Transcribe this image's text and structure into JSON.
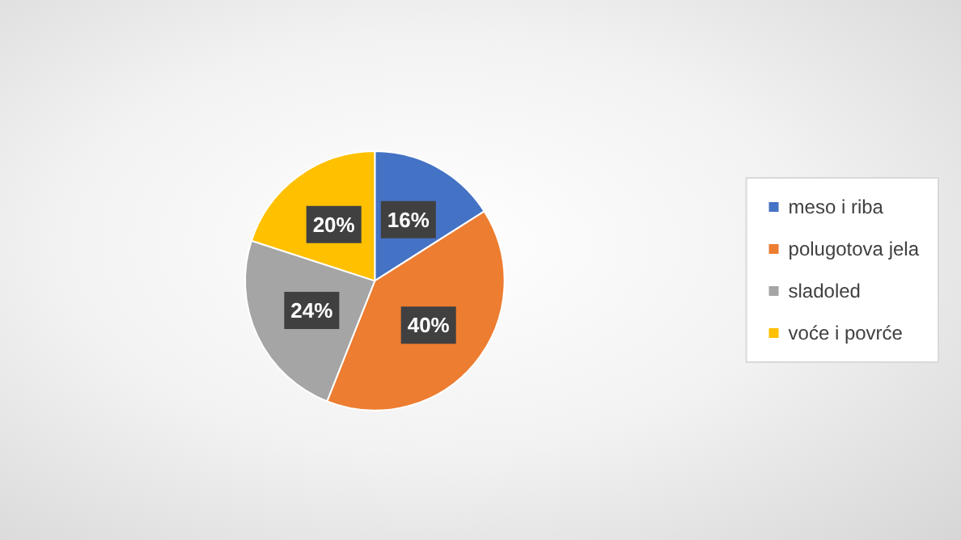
{
  "chart_data": {
    "type": "pie",
    "categories": [
      "meso i riba",
      "polugotova jela",
      "sladoled",
      "voće i povrće"
    ],
    "values": [
      16,
      40,
      24,
      20
    ],
    "value_labels": [
      "16%",
      "40%",
      "24%",
      "20%"
    ],
    "colors": [
      "#4472c4",
      "#ed7d31",
      "#a5a5a5",
      "#ffc000"
    ],
    "legend": "right"
  }
}
